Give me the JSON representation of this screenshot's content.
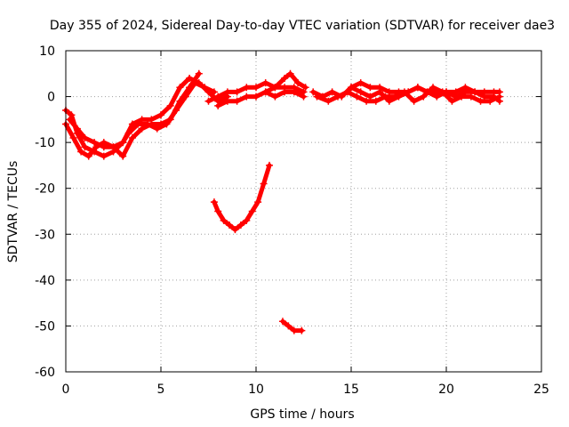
{
  "chart_data": {
    "type": "scatter",
    "title": "Day 355 of 2024, Sidereal Day-to-day VTEC variation (SDTVAR) for receiver dae3",
    "xlabel": "GPS time / hours",
    "ylabel": "SDTVAR / TECUs",
    "xlim": [
      0,
      25
    ],
    "ylim": [
      -60,
      10
    ],
    "xticks": [
      0,
      5,
      10,
      15,
      20,
      25
    ],
    "yticks": [
      -60,
      -50,
      -40,
      -30,
      -20,
      -10,
      0,
      10
    ],
    "xtick_labels": [
      "0",
      "5",
      "10",
      "15",
      "20",
      "25"
    ],
    "ytick_labels": [
      "-60",
      "-50",
      "-40",
      "-30",
      "-20",
      "-10",
      "0",
      "10"
    ],
    "grid": true,
    "marker": "plus",
    "color": "#ff0000",
    "series": [
      {
        "name": "track-a",
        "x": [
          0.0,
          0.3,
          0.6,
          1.0,
          1.5,
          2.0,
          2.5,
          3.0,
          3.5,
          4.0,
          4.5,
          5.0,
          5.5,
          6.0,
          6.5,
          7.0,
          7.5,
          8.0,
          8.5
        ],
        "y": [
          -3,
          -4,
          -8,
          -11,
          -12,
          -13,
          -12,
          -10,
          -6,
          -5,
          -5,
          -4,
          -2,
          2,
          4,
          3,
          1,
          -1,
          0
        ]
      },
      {
        "name": "track-b",
        "x": [
          0.0,
          0.4,
          0.8,
          1.2,
          1.6,
          2.0,
          2.5,
          3.0,
          3.5,
          4.0,
          4.5,
          5.0,
          5.5,
          6.0,
          6.5,
          7.0
        ],
        "y": [
          -6,
          -9,
          -12,
          -13,
          -11,
          -10,
          -11,
          -13,
          -9,
          -7,
          -6,
          -6,
          -5,
          -1,
          2,
          5
        ]
      },
      {
        "name": "track-c",
        "x": [
          0.2,
          0.6,
          1.0,
          1.5,
          2.0,
          2.5,
          3.0,
          3.3,
          3.8,
          4.3,
          4.8,
          5.3,
          5.8,
          6.3,
          6.8,
          7.3,
          7.8
        ],
        "y": [
          -5,
          -7,
          -9,
          -10,
          -11,
          -11,
          -10,
          -8,
          -6,
          -6,
          -7,
          -6,
          -3,
          0,
          3,
          2,
          1
        ]
      },
      {
        "name": "track-d",
        "x": [
          7.5,
          8.0,
          8.5,
          9.0,
          9.5,
          10.0,
          10.5,
          11.0,
          11.5,
          12.0,
          12.5
        ],
        "y": [
          -1,
          0,
          1,
          1,
          2,
          2,
          3,
          2,
          2,
          2,
          1
        ]
      },
      {
        "name": "track-e",
        "x": [
          8.0,
          8.5,
          9.0,
          9.5,
          10.0,
          10.5,
          11.0,
          11.5,
          12.0,
          12.5
        ],
        "y": [
          -2,
          -1,
          -1,
          0,
          0,
          1,
          0,
          1,
          1,
          0
        ]
      },
      {
        "name": "track-f",
        "x": [
          10.5,
          11.0,
          11.5,
          11.8,
          12.2,
          12.6
        ],
        "y": [
          1,
          2,
          4,
          5,
          3,
          2
        ]
      },
      {
        "name": "track-g",
        "x": [
          13.0,
          13.5,
          14.0,
          14.5,
          15.0,
          15.5,
          16.0,
          16.5,
          17.0,
          17.5,
          18.0,
          18.5,
          19.0,
          19.5,
          20.0,
          20.5,
          21.0,
          21.5,
          22.0,
          22.5,
          22.8
        ],
        "y": [
          1,
          0,
          1,
          0,
          2,
          1,
          0,
          1,
          -1,
          0,
          1,
          2,
          1,
          0,
          1,
          0,
          1,
          1,
          0,
          0,
          -1
        ]
      },
      {
        "name": "track-h",
        "x": [
          13.2,
          13.8,
          14.3,
          14.8,
          15.3,
          15.8,
          16.3,
          16.8,
          17.3,
          17.8,
          18.3,
          18.8,
          19.3,
          19.8,
          20.3,
          20.8,
          21.3,
          21.8,
          22.3,
          22.8
        ],
        "y": [
          0,
          -1,
          0,
          1,
          0,
          -1,
          -1,
          0,
          0,
          1,
          -1,
          0,
          2,
          1,
          -1,
          0,
          0,
          -1,
          -1,
          0
        ]
      },
      {
        "name": "track-i",
        "x": [
          15.0,
          15.5,
          16.0,
          16.5,
          17.0,
          17.5,
          18.0,
          18.5,
          19.0,
          19.5,
          20.0,
          20.5,
          21.0,
          21.5,
          22.0,
          22.5,
          22.8
        ],
        "y": [
          2,
          3,
          2,
          2,
          1,
          1,
          1,
          2,
          1,
          1,
          1,
          1,
          2,
          1,
          1,
          1,
          1
        ]
      },
      {
        "name": "track-j",
        "x": [
          7.8,
          8.0,
          8.3,
          8.6,
          8.9,
          9.2,
          9.5,
          9.8,
          10.1,
          10.4,
          10.7
        ],
        "y": [
          -23,
          -25,
          -27,
          -28,
          -29,
          -28,
          -27,
          -25,
          -23,
          -19,
          -15
        ]
      },
      {
        "name": "track-k",
        "x": [
          11.4,
          11.7,
          12.0,
          12.4
        ],
        "y": [
          -49,
          -50,
          -51,
          -51
        ]
      }
    ]
  }
}
